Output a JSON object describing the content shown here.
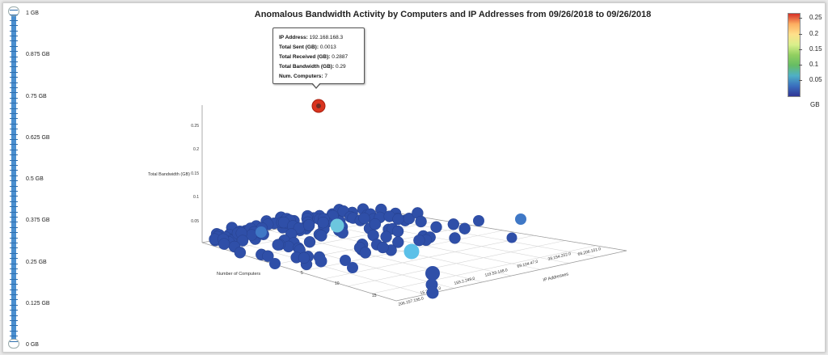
{
  "chart_data": {
    "type": "scatter",
    "title": "Anomalous Bandwidth Activity by Computers and IP Addresses from 09/26/2018 to 09/26/2018",
    "zlabel": "Total Bandwidth (GB)",
    "xlabel": "Number of Computers",
    "ylabel": "IP Addresses",
    "z_ticks": [
      "0.05",
      "0.1",
      "0.15",
      "0.2",
      "0.25"
    ],
    "x_ticks": [
      "5",
      "10",
      "15"
    ],
    "y_ticks": [
      "206.157.195.0",
      "15.208.84.0",
      "159.2.249.0",
      "119.53.148.0",
      "69.104.47.0",
      "39.154.202.0",
      "69.206.101.0"
    ],
    "color_scale": {
      "unit": "GB",
      "ticks": [
        "0.25",
        "0.2",
        "0.15",
        "0.1",
        "0.05"
      ],
      "colors": [
        "#d73027",
        "#fdae61",
        "#fee08b",
        "#d9ef8b",
        "#91cf60",
        "#66bd63",
        "#4fb0c6",
        "#3a6fbe",
        "#313695"
      ]
    },
    "highlighted_point": {
      "ip_address": "192.168.168.3",
      "total_sent_gb": 0.0013,
      "total_received_gb": 0.2887,
      "total_bandwidth_gb": 0.29,
      "num_computers": 7
    }
  },
  "slider": {
    "labels": [
      "1 GB",
      "0.875 GB",
      "0.75 GB",
      "0.625 GB",
      "0.5 GB",
      "0.375 GB",
      "0.25 GB",
      "0.125 GB",
      "0 GB"
    ],
    "upper_value_gb": 1,
    "lower_value_gb": 0
  },
  "tooltip": {
    "ip_label": "IP Address:",
    "ip_value": "192.168.168.3",
    "sent_label": "Total Sent (GB):",
    "sent_value": "0.0013",
    "received_label": "Total Received (GB):",
    "received_value": "0.2887",
    "bandwidth_label": "Total Bandwidth (GB):",
    "bandwidth_value": "0.29",
    "computers_label": "Num. Computers:",
    "computers_value": "7"
  }
}
